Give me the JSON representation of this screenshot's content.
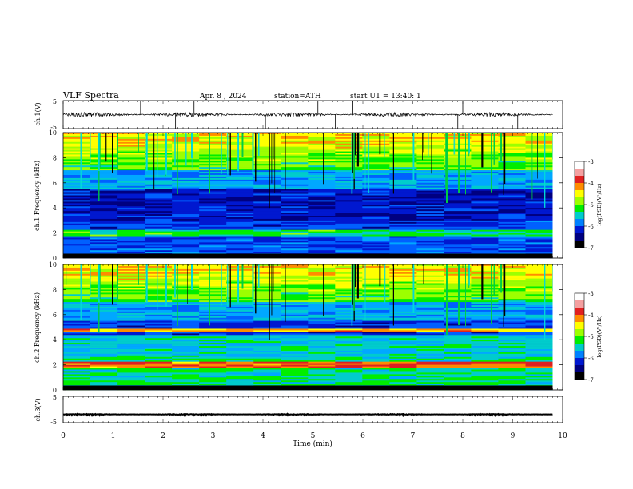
{
  "header": {
    "title": "VLF Spectra",
    "date": "Apr. 8 , 2024",
    "station": "station=ATH",
    "start": "start UT = 13:40: 1"
  },
  "colorbar": {
    "label": "log(PSD)(V²/Hz)",
    "ticks": [
      "-3",
      "-4",
      "-5",
      "-6",
      "-7"
    ],
    "colors": [
      "#ffffff",
      "#f4a0a0",
      "#e02020",
      "#ff8c00",
      "#ffff00",
      "#9cff00",
      "#00ee00",
      "#00cccc",
      "#0080ff",
      "#0018d0",
      "#000080",
      "#000000"
    ]
  },
  "chart_data": [
    {
      "type": "line",
      "name": "ch1-waveform",
      "ylabel": "ch.1(V)",
      "ylim": [
        -5,
        5
      ],
      "yticks": [
        "5",
        "-5"
      ],
      "xlim": [
        0,
        10
      ],
      "t_end": 9.8,
      "baseline": 0,
      "noise_amplitude": 0.8,
      "spike_times": [
        1.55,
        2.25,
        2.62,
        4.05,
        5.1,
        5.45,
        5.8,
        7.9,
        8.0,
        9.1
      ]
    },
    {
      "type": "heatmap",
      "name": "ch1-spectrogram",
      "ylabel": "ch.1 Frequency (kHz)",
      "ylim": [
        0,
        10
      ],
      "yticks": [
        "10",
        "8",
        "6",
        "4",
        "2",
        "0"
      ],
      "xlim": [
        0,
        10
      ],
      "t_end": 9.8,
      "zlim": [
        -7,
        -3
      ]
    },
    {
      "type": "heatmap",
      "name": "ch2-spectrogram",
      "ylabel": "ch.2 Frequency (kHz)",
      "ylim": [
        0,
        10
      ],
      "yticks": [
        "10",
        "8",
        "6",
        "4",
        "2",
        "0"
      ],
      "xlim": [
        0,
        10
      ],
      "t_end": 9.8,
      "zlim": [
        -7,
        -3
      ]
    },
    {
      "type": "line",
      "name": "ch3-waveform",
      "ylabel": "ch.3(V)",
      "ylim": [
        -5,
        5
      ],
      "yticks": [
        "5",
        "-5"
      ],
      "xlim": [
        0,
        10
      ],
      "t_end": 9.8,
      "baseline": -2,
      "noise_amplitude": 0.15,
      "spike_times": []
    }
  ],
  "xaxis": {
    "label": "Time (min)",
    "ticks": [
      "0",
      "1",
      "2",
      "3",
      "4",
      "5",
      "6",
      "7",
      "8",
      "9",
      "10"
    ]
  }
}
